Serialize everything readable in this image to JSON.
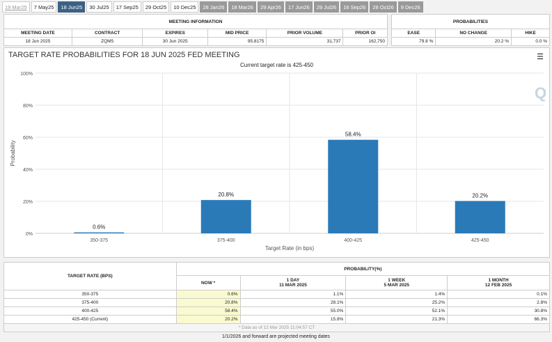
{
  "tabs": [
    {
      "label": "19 Mar25",
      "state": "past"
    },
    {
      "label": "7 May25",
      "state": ""
    },
    {
      "label": "18 Jun25",
      "state": "active"
    },
    {
      "label": "30 Jul25",
      "state": ""
    },
    {
      "label": "17 Sep25",
      "state": ""
    },
    {
      "label": "29 Oct25",
      "state": ""
    },
    {
      "label": "10 Dec25",
      "state": ""
    },
    {
      "label": "28 Jan26",
      "state": "proj"
    },
    {
      "label": "18 Mar26",
      "state": "proj"
    },
    {
      "label": "29 Apr26",
      "state": "proj"
    },
    {
      "label": "17 Jun26",
      "state": "proj"
    },
    {
      "label": "29 Jul26",
      "state": "proj"
    },
    {
      "label": "16 Sep26",
      "state": "proj"
    },
    {
      "label": "28 Oct26",
      "state": "proj"
    },
    {
      "label": "9 Dec26",
      "state": "proj"
    }
  ],
  "meeting": {
    "title": "MEETING INFORMATION",
    "headers": [
      "MEETING DATE",
      "CONTRACT",
      "EXPIRES",
      "MID PRICE",
      "PRIOR VOLUME",
      "PRIOR OI"
    ],
    "values": [
      "18 Jun 2025",
      "ZQM5",
      "30 Jun 2025",
      "95.8175",
      "31,737",
      "162,750"
    ]
  },
  "probs": {
    "title": "PROBABILITIES",
    "headers": [
      "EASE",
      "NO CHANGE",
      "HIKE"
    ],
    "values": [
      "79.8 %",
      "20.2 %",
      "0.0 %"
    ]
  },
  "chart_data": {
    "type": "bar",
    "title": "TARGET RATE PROBABILITIES FOR 18 JUN 2025 FED MEETING",
    "subtitle": "Current target rate is 425-450",
    "xlabel": "Target Rate (in bps)",
    "ylabel": "Probability",
    "categories": [
      "350-375",
      "375-400",
      "400-425",
      "425-450"
    ],
    "values": [
      0.6,
      20.8,
      58.4,
      20.2
    ],
    "data_labels": [
      "0.6%",
      "20.8%",
      "58.4%",
      "20.2%"
    ],
    "ylim": [
      0,
      100
    ],
    "yticks": [
      "0%",
      "20%",
      "40%",
      "60%",
      "80%",
      "100%"
    ],
    "color": "#2a7ab8",
    "grid": true
  },
  "history": {
    "rate_header": "TARGET RATE (BPS)",
    "prob_header": "PROBABILITY(%)",
    "cols": [
      {
        "l1": "NOW",
        "l2": ""
      },
      {
        "l1": "1 DAY",
        "l2": "11 MAR 2025"
      },
      {
        "l1": "1 WEEK",
        "l2": "5 MAR 2025"
      },
      {
        "l1": "1 MONTH",
        "l2": "12 FEB 2025"
      }
    ],
    "rows": [
      {
        "rate": "350-375",
        "v": [
          "0.6%",
          "1.1%",
          "1.4%",
          "0.1%"
        ]
      },
      {
        "rate": "375-400",
        "v": [
          "20.8%",
          "28.1%",
          "25.2%",
          "2.8%"
        ]
      },
      {
        "rate": "400-425",
        "v": [
          "58.4%",
          "55.0%",
          "52.1%",
          "30.8%"
        ]
      },
      {
        "rate": "425-450 (Current)",
        "v": [
          "20.2%",
          "15.8%",
          "21.3%",
          "66.3%"
        ]
      }
    ],
    "note": "* Data as of 12 Mar 2025 11:04:57 CT"
  },
  "footer": "1/1/2026 and forward are projected meeting dates"
}
